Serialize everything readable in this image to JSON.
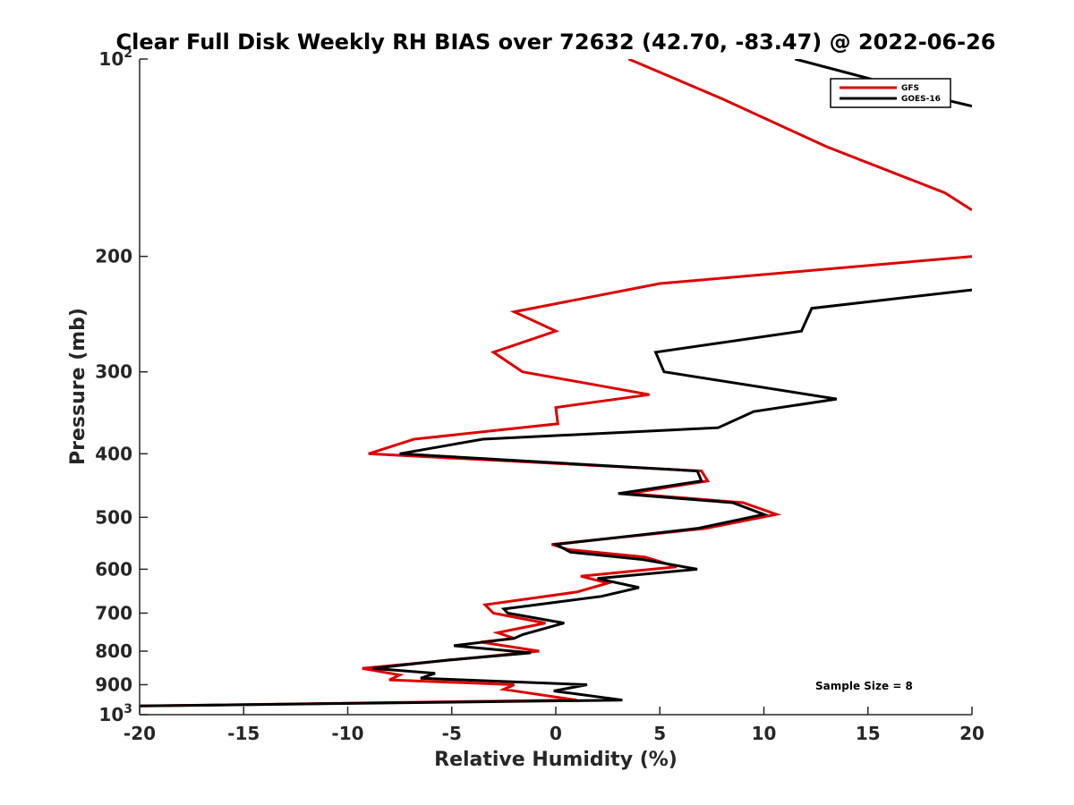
{
  "chart_data": {
    "type": "line",
    "title": "Clear Full Disk Weekly RH BIAS over 72632 (42.70, -83.47) @ 2022-06-26",
    "xlabel": "Relative Humidity (%)",
    "ylabel": "Pressure (mb)",
    "xlim": [
      -20,
      20
    ],
    "ylim": [
      100,
      1000
    ],
    "y_scale": "log",
    "y_reversed": true,
    "grid": false,
    "legend_position": "top-right",
    "xticks": [
      -20,
      -15,
      -10,
      -5,
      0,
      5,
      10,
      15,
      20
    ],
    "xtick_labels": [
      "-20",
      "-15",
      "-10",
      "-5",
      "0",
      "5",
      "10",
      "15",
      "20"
    ],
    "yticks": [
      100,
      200,
      300,
      400,
      500,
      600,
      700,
      800,
      900,
      1000
    ],
    "ytick_labels": [
      {
        "base": "10",
        "exp": "2"
      },
      {
        "base": "200",
        "exp": ""
      },
      {
        "base": "300",
        "exp": ""
      },
      {
        "base": "400",
        "exp": ""
      },
      {
        "base": "500",
        "exp": ""
      },
      {
        "base": "600",
        "exp": ""
      },
      {
        "base": "700",
        "exp": ""
      },
      {
        "base": "800",
        "exp": ""
      },
      {
        "base": "900",
        "exp": ""
      },
      {
        "base": "10",
        "exp": "3"
      }
    ],
    "series": [
      {
        "name": "GFS",
        "color": "#dd0000",
        "points": [
          [
            3.5,
            100
          ],
          [
            8,
            115
          ],
          [
            13,
            136
          ],
          [
            18.7,
            160
          ],
          [
            20,
            170
          ],
          [
            null,
            null
          ],
          [
            20,
            200
          ],
          [
            5,
            220
          ],
          [
            -2,
            243
          ],
          [
            0,
            260
          ],
          [
            -3,
            280
          ],
          [
            -1.6,
            300
          ],
          [
            4.5,
            325
          ],
          [
            0,
            340
          ],
          [
            0.1,
            360
          ],
          [
            -6.8,
            380
          ],
          [
            -9,
            400
          ],
          [
            7,
            425
          ],
          [
            7.3,
            440
          ],
          [
            3.5,
            460
          ],
          [
            9,
            475
          ],
          [
            10.6,
            495
          ],
          [
            7.2,
            520
          ],
          [
            -0.2,
            550
          ],
          [
            0.6,
            560
          ],
          [
            4.3,
            575
          ],
          [
            5.8,
            595
          ],
          [
            1.2,
            615
          ],
          [
            2.5,
            630
          ],
          [
            1,
            650
          ],
          [
            -3.4,
            680
          ],
          [
            -3,
            700
          ],
          [
            -0.5,
            725
          ],
          [
            -2.8,
            750
          ],
          [
            -2,
            765
          ],
          [
            -3.6,
            775
          ],
          [
            -0.8,
            800
          ],
          [
            -5,
            825
          ],
          [
            -9.3,
            850
          ],
          [
            -7.5,
            870
          ],
          [
            -8,
            885
          ],
          [
            -2,
            900
          ],
          [
            -2.5,
            915
          ],
          [
            1,
            950
          ],
          [
            -20,
            970
          ]
        ]
      },
      {
        "name": "GOES-16",
        "color": "#000000",
        "points": [
          [
            11.5,
            100
          ],
          [
            15,
            107
          ],
          [
            18,
            114
          ],
          [
            20,
            118
          ],
          [
            null,
            null
          ],
          [
            20,
            225
          ],
          [
            12.3,
            240
          ],
          [
            11.8,
            260
          ],
          [
            4.8,
            280
          ],
          [
            5.2,
            300
          ],
          [
            13.5,
            330
          ],
          [
            9.5,
            345
          ],
          [
            7.8,
            365
          ],
          [
            -3.5,
            380
          ],
          [
            -7.5,
            400
          ],
          [
            6.8,
            425
          ],
          [
            7,
            440
          ],
          [
            3,
            460
          ],
          [
            8.5,
            475
          ],
          [
            10,
            495
          ],
          [
            6.8,
            520
          ],
          [
            0,
            550
          ],
          [
            0.7,
            565
          ],
          [
            4.2,
            580
          ],
          [
            6.8,
            600
          ],
          [
            2,
            620
          ],
          [
            4,
            640
          ],
          [
            2.2,
            660
          ],
          [
            -2.5,
            690
          ],
          [
            -2.3,
            700
          ],
          [
            0.4,
            725
          ],
          [
            -1.6,
            755
          ],
          [
            -2,
            765
          ],
          [
            -4.9,
            785
          ],
          [
            -1.2,
            805
          ],
          [
            -5.1,
            825
          ],
          [
            -8.8,
            850
          ],
          [
            -5.8,
            865
          ],
          [
            -6.5,
            880
          ],
          [
            1.5,
            900
          ],
          [
            -0.1,
            920
          ],
          [
            3.2,
            950
          ],
          [
            -20,
            970
          ]
        ]
      }
    ],
    "annotations": [
      {
        "text": "Sample Size = 8"
      }
    ]
  }
}
